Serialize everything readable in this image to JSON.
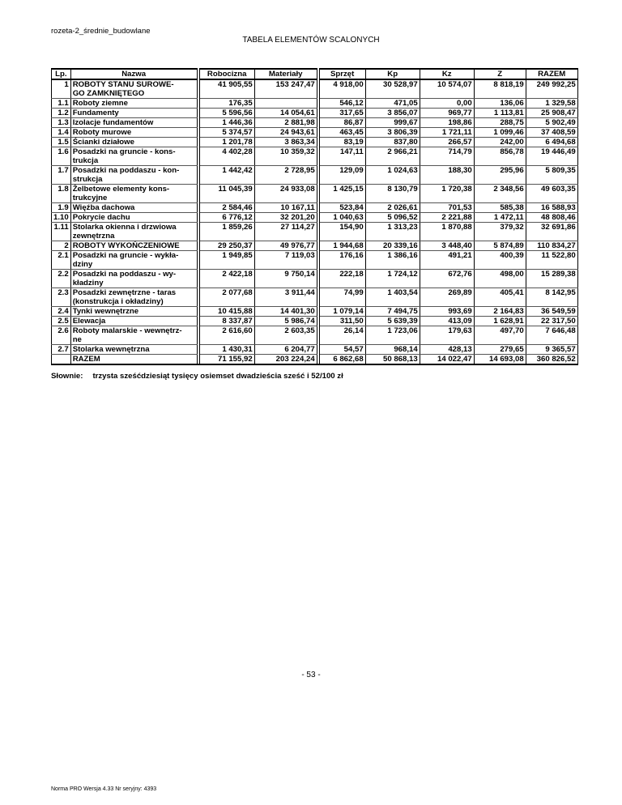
{
  "document_name": "rozeta-2_średnie_budowlane",
  "title": "TABELA ELEMENTÓW SCALONYCH",
  "columns": [
    "Lp.",
    "Nazwa",
    "Robocizna",
    "Materiały",
    "Sprzęt",
    "Kp",
    "Kz",
    "Z",
    "RAZEM"
  ],
  "rows": [
    [
      "1",
      "ROBOTY STANU SUROWE-\nGO ZAMKNIĘTEGO",
      "41 905,55",
      "153 247,47",
      "4 918,00",
      "30 528,97",
      "10 574,07",
      "8 818,19",
      "249 992,25"
    ],
    [
      "1.1",
      "Roboty ziemne",
      "176,35",
      "",
      "546,12",
      "471,05",
      "0,00",
      "136,06",
      "1 329,58"
    ],
    [
      "1.2",
      "Fundamenty",
      "5 596,56",
      "14 054,61",
      "317,65",
      "3 856,07",
      "969,77",
      "1 113,81",
      "25 908,47"
    ],
    [
      "1.3",
      "Izolacje fundamentów",
      "1 446,36",
      "2 881,98",
      "86,87",
      "999,67",
      "198,86",
      "288,75",
      "5 902,49"
    ],
    [
      "1.4",
      "Roboty murowe",
      "5 374,57",
      "24 943,61",
      "463,45",
      "3 806,39",
      "1 721,11",
      "1 099,46",
      "37 408,59"
    ],
    [
      "1.5",
      "Ścianki działowe",
      "1 201,78",
      "3 863,34",
      "83,19",
      "837,80",
      "266,57",
      "242,00",
      "6 494,68"
    ],
    [
      "1.6",
      "Posadzki na gruncie - kons-\ntrukcja",
      "4 402,28",
      "10 359,32",
      "147,11",
      "2 966,21",
      "714,79",
      "856,78",
      "19 446,49"
    ],
    [
      "1.7",
      "Posadzki na poddaszu - kon-\nstrukcja",
      "1 442,42",
      "2 728,95",
      "129,09",
      "1 024,63",
      "188,30",
      "295,96",
      "5 809,35"
    ],
    [
      "1.8",
      "Żelbetowe elementy kons-\ntrukcyjne",
      "11 045,39",
      "24 933,08",
      "1 425,15",
      "8 130,79",
      "1 720,38",
      "2 348,56",
      "49 603,35"
    ],
    [
      "1.9",
      "Więźba dachowa",
      "2 584,46",
      "10 167,11",
      "523,84",
      "2 026,61",
      "701,53",
      "585,38",
      "16 588,93"
    ],
    [
      "1.10",
      "Pokrycie dachu",
      "6 776,12",
      "32 201,20",
      "1 040,63",
      "5 096,52",
      "2 221,88",
      "1 472,11",
      "48 808,46"
    ],
    [
      "1.11",
      "Stolarka okienna i drzwiowa\nzewnętrzna",
      "1 859,26",
      "27 114,27",
      "154,90",
      "1 313,23",
      "1 870,88",
      "379,32",
      "32 691,86"
    ],
    [
      "2",
      "ROBOTY WYKOŃCZENIOWE",
      "29 250,37",
      "49 976,77",
      "1 944,68",
      "20 339,16",
      "3 448,40",
      "5 874,89",
      "110 834,27"
    ],
    [
      "2.1",
      "Posadzki na gruncie - wykła-\ndziny",
      "1 949,85",
      "7 119,03",
      "176,16",
      "1 386,16",
      "491,21",
      "400,39",
      "11 522,80"
    ],
    [
      "2.2",
      "Posadzki na poddaszu - wy-\nkładziny",
      "2 422,18",
      "9 750,14",
      "222,18",
      "1 724,12",
      "672,76",
      "498,00",
      "15 289,38"
    ],
    [
      "2.3",
      "Posadzki zewnętrzne - taras\n(konstrukcja i okładziny)",
      "2 077,68",
      "3 911,44",
      "74,99",
      "1 403,54",
      "269,89",
      "405,41",
      "8 142,95"
    ],
    [
      "2.4",
      "Tynki wewnętrzne",
      "10 415,88",
      "14 401,30",
      "1 079,14",
      "7 494,75",
      "993,69",
      "2 164,83",
      "36 549,59"
    ],
    [
      "2.5",
      "Elewacja",
      "8 337,87",
      "5 986,74",
      "311,50",
      "5 639,39",
      "413,09",
      "1 628,91",
      "22 317,50"
    ],
    [
      "2.6",
      "Roboty malarskie - wewnętrz-\nne",
      "2 616,60",
      "2 603,35",
      "26,14",
      "1 723,06",
      "179,63",
      "497,70",
      "7 646,48"
    ],
    [
      "2.7",
      "Stolarka wewnętrzna",
      "1 430,31",
      "6 204,77",
      "54,57",
      "968,14",
      "428,13",
      "279,65",
      "9 365,57"
    ],
    [
      "",
      "RAZEM",
      "71 155,92",
      "203 224,24",
      "6 862,68",
      "50 868,13",
      "14 022,47",
      "14 693,08",
      "360 826,52"
    ]
  ],
  "in_words_label": "Słownie:",
  "in_words": "trzysta sześćdziesiąt tysięcy osiemset dwadzieścia sześć i 52/100 zł",
  "page_number": "- 53 -",
  "footer": "Norma PRO Wersja 4.33 Nr seryjny: 4393"
}
